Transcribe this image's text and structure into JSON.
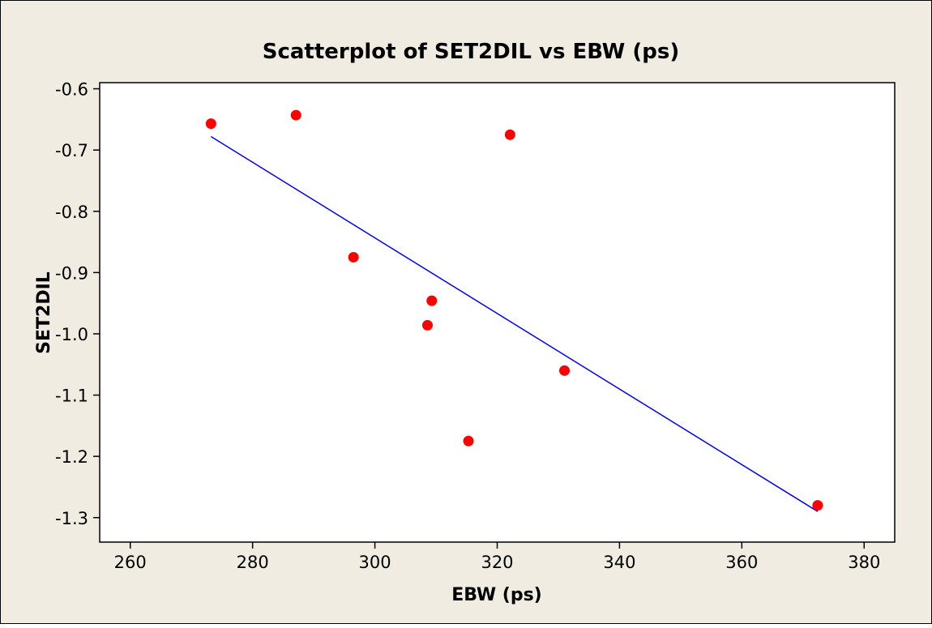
{
  "chart_data": {
    "type": "scatter",
    "title": "Scatterplot of SET2DIL vs EBW (ps)",
    "xlabel": "EBW (ps)",
    "ylabel": "SET2DIL",
    "xlim": [
      255,
      385
    ],
    "ylim": [
      -1.34,
      -0.59
    ],
    "xticks": [
      260,
      280,
      300,
      320,
      340,
      360,
      380
    ],
    "xtick_labels": [
      "260",
      "280",
      "300",
      "320",
      "340",
      "360",
      "380"
    ],
    "yticks": [
      -0.6,
      -0.7,
      -0.8,
      -0.9,
      -1.0,
      -1.1,
      -1.2,
      -1.3
    ],
    "ytick_labels": [
      "-0.6",
      "-0.7",
      "-0.8",
      "-0.9",
      "-1.0",
      "-1.1",
      "-1.2",
      "-1.3"
    ],
    "grid": false,
    "series": [
      {
        "points": [
          {
            "x": 273.2,
            "y": -0.657
          },
          {
            "x": 287.1,
            "y": -0.643
          },
          {
            "x": 296.5,
            "y": -0.875
          },
          {
            "x": 308.6,
            "y": -0.986
          },
          {
            "x": 309.3,
            "y": -0.946
          },
          {
            "x": 315.3,
            "y": -1.175
          },
          {
            "x": 322.1,
            "y": -0.675
          },
          {
            "x": 331.0,
            "y": -1.06
          },
          {
            "x": 372.4,
            "y": -1.28
          }
        ],
        "color": "#ff0000"
      }
    ],
    "fit_line": {
      "x": [
        273.2,
        372.4
      ],
      "y": [
        -0.678,
        -1.29
      ],
      "color": "#0000ff"
    }
  }
}
